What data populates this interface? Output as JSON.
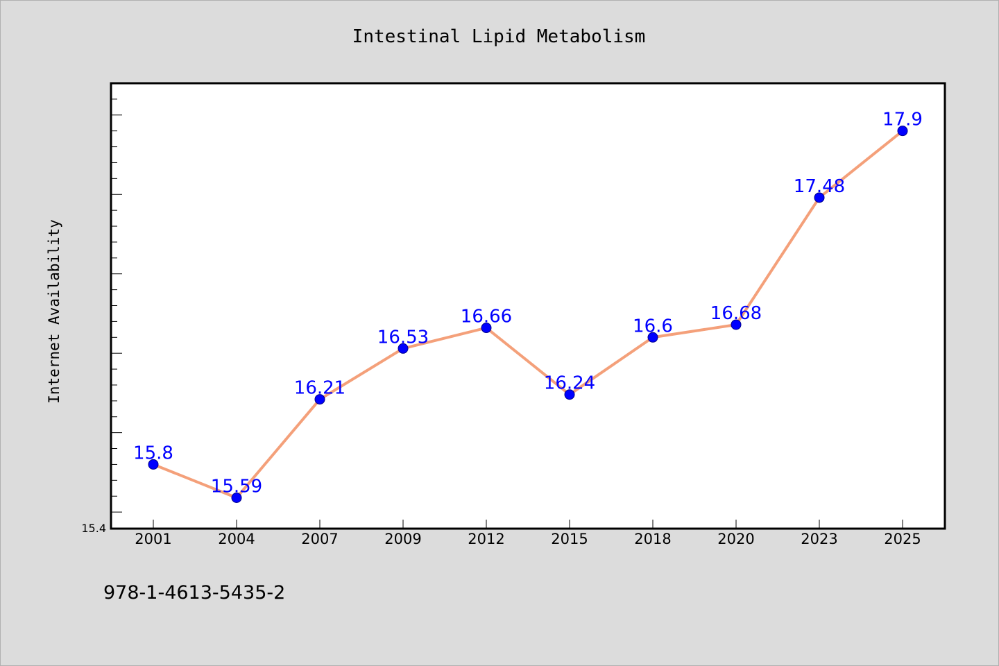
{
  "chart_data": {
    "type": "line",
    "title": "Intestinal Lipid Metabolism",
    "xlabel": "",
    "ylabel": "Internet Availability",
    "categories": [
      "2001",
      "2004",
      "2007",
      "2009",
      "2012",
      "2015",
      "2018",
      "2020",
      "2023",
      "2025"
    ],
    "series": [
      {
        "values": [
          15.8,
          15.59,
          16.21,
          16.53,
          16.66,
          16.24,
          16.6,
          16.68,
          17.48,
          17.9
        ],
        "labels": [
          "15.8",
          "15.59",
          "16.21",
          "16.53",
          "16.66",
          "16.24",
          "16.6",
          "16.68",
          "17.48",
          "17.9"
        ]
      }
    ],
    "ylim": [
      15.4,
      18.2
    ],
    "ytick_labels": [
      "15.4"
    ],
    "grid": false,
    "legend": "none",
    "colors": {
      "line": "#f4a07a",
      "marker": "#0000ff",
      "data_label": "#0000ff",
      "plot_background": "#ffffff",
      "figure_background": "#dcdcdc"
    }
  },
  "footnote": "978-1-4613-5435-2"
}
